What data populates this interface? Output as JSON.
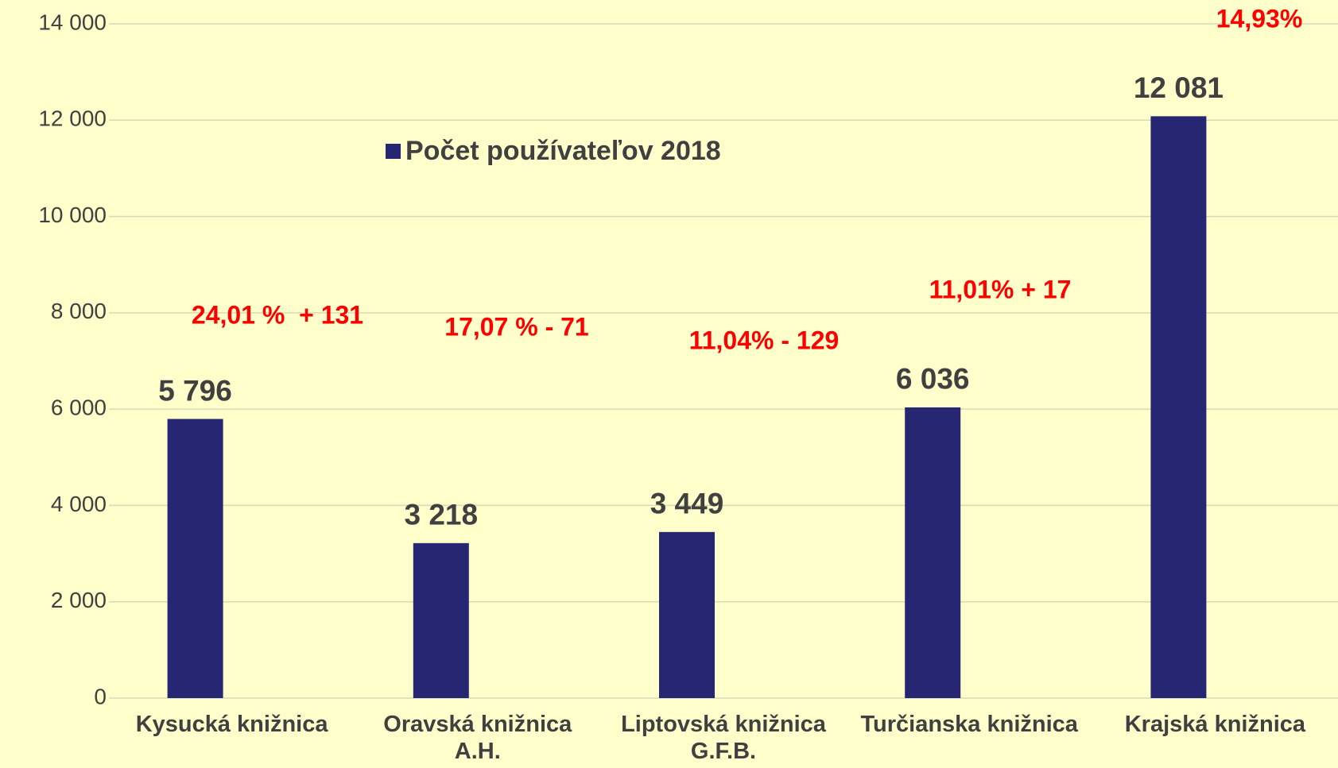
{
  "chart_data": {
    "type": "bar",
    "categories": [
      "Kysucká knižnica",
      "Oravská knižnica\nA.H.",
      "Liptovská knižnica\nG.F.B.",
      "Turčianska knižnica",
      "Krajská knižnica"
    ],
    "series": [
      {
        "name": "Počet používateľov 2018",
        "color": "#262673",
        "values": [
          5796,
          3218,
          3449,
          6036,
          12081
        ],
        "value_labels": [
          "5 796",
          "3 218",
          "3 449",
          "6 036",
          "12 081"
        ]
      }
    ],
    "ylim": [
      0,
      14000
    ],
    "yticks": [
      0,
      {
        "value": 2000,
        "label": "2 000"
      },
      {
        "value": 4000,
        "label": "4 000"
      },
      {
        "value": 6000,
        "label": "6 000"
      },
      {
        "value": 8000,
        "label": "8 000"
      },
      {
        "value": 10000,
        "label": "10 000"
      },
      {
        "value": 12000,
        "label": "12 000"
      },
      {
        "value": 14000,
        "label": "14 000"
      }
    ],
    "grid": true,
    "annotations": [
      "24,01 %  + 131",
      "17,07 % - 71",
      "11,04% - 129",
      "11,01% + 17",
      "14,93%"
    ]
  }
}
